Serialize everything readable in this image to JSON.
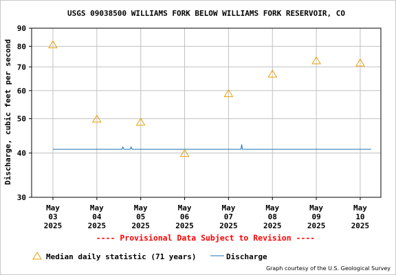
{
  "chart_data": {
    "type": "scatter",
    "title": "USGS 09038500 WILLIAMS FORK BELOW WILLIAMS FORK RESERVOIR, CO",
    "ylabel": "Discharge, cubic feet per second",
    "xlabel": "",
    "y_scale": "log",
    "ylim": [
      30,
      90
    ],
    "yticks": [
      30,
      40,
      50,
      60,
      70,
      80,
      90
    ],
    "grid": true,
    "x_ticks": [
      {
        "month": "May",
        "day": "03",
        "year": "2025"
      },
      {
        "month": "May",
        "day": "04",
        "year": "2025"
      },
      {
        "month": "May",
        "day": "05",
        "year": "2025"
      },
      {
        "month": "May",
        "day": "06",
        "year": "2025"
      },
      {
        "month": "May",
        "day": "07",
        "year": "2025"
      },
      {
        "month": "May",
        "day": "08",
        "year": "2025"
      },
      {
        "month": "May",
        "day": "09",
        "year": "2025"
      },
      {
        "month": "May",
        "day": "10",
        "year": "2025"
      }
    ],
    "series": [
      {
        "name": "Median daily statistic (71 years)",
        "marker": "triangle",
        "color": "#e8a000",
        "points": [
          {
            "x": "2025-05-03",
            "y": 81
          },
          {
            "x": "2025-05-04",
            "y": 50
          },
          {
            "x": "2025-05-05",
            "y": 49
          },
          {
            "x": "2025-05-06",
            "y": 40
          },
          {
            "x": "2025-05-07",
            "y": 59
          },
          {
            "x": "2025-05-08",
            "y": 67
          },
          {
            "x": "2025-05-09",
            "y": 73
          },
          {
            "x": "2025-05-10",
            "y": 72
          }
        ]
      },
      {
        "name": "Discharge",
        "type": "line",
        "color": "#1f6fb4",
        "points": [
          {
            "x": "2025-05-03 00:00",
            "y": 41
          },
          {
            "x": "2025-05-04 13:45",
            "y": 41
          },
          {
            "x": "2025-05-04 14:15",
            "y": 41.6
          },
          {
            "x": "2025-05-04 14:45",
            "y": 41
          },
          {
            "x": "2025-05-04 18:15",
            "y": 41
          },
          {
            "x": "2025-05-04 18:45",
            "y": 41.6
          },
          {
            "x": "2025-05-04 19:15",
            "y": 41
          },
          {
            "x": "2025-05-07 06:45",
            "y": 41
          },
          {
            "x": "2025-05-07 07:00",
            "y": 41.6
          },
          {
            "x": "2025-05-07 07:15",
            "y": 42.3
          },
          {
            "x": "2025-05-07 07:30",
            "y": 41
          },
          {
            "x": "2025-05-10 00:00",
            "y": 41
          },
          {
            "x": "2025-05-10 06:00",
            "y": 41
          }
        ]
      }
    ]
  },
  "provisional_note": "---- Provisional Data Subject to Revision ----",
  "legend": {
    "median_label": "Median daily statistic (71 years)",
    "discharge_label": "Discharge"
  },
  "credit": "Graph courtesy of the U.S. Geological Survey",
  "colors": {
    "median": "#e8a000",
    "discharge": "#1f6fb4",
    "grid": "#c0c0c0",
    "provisional": "#ff0000"
  }
}
